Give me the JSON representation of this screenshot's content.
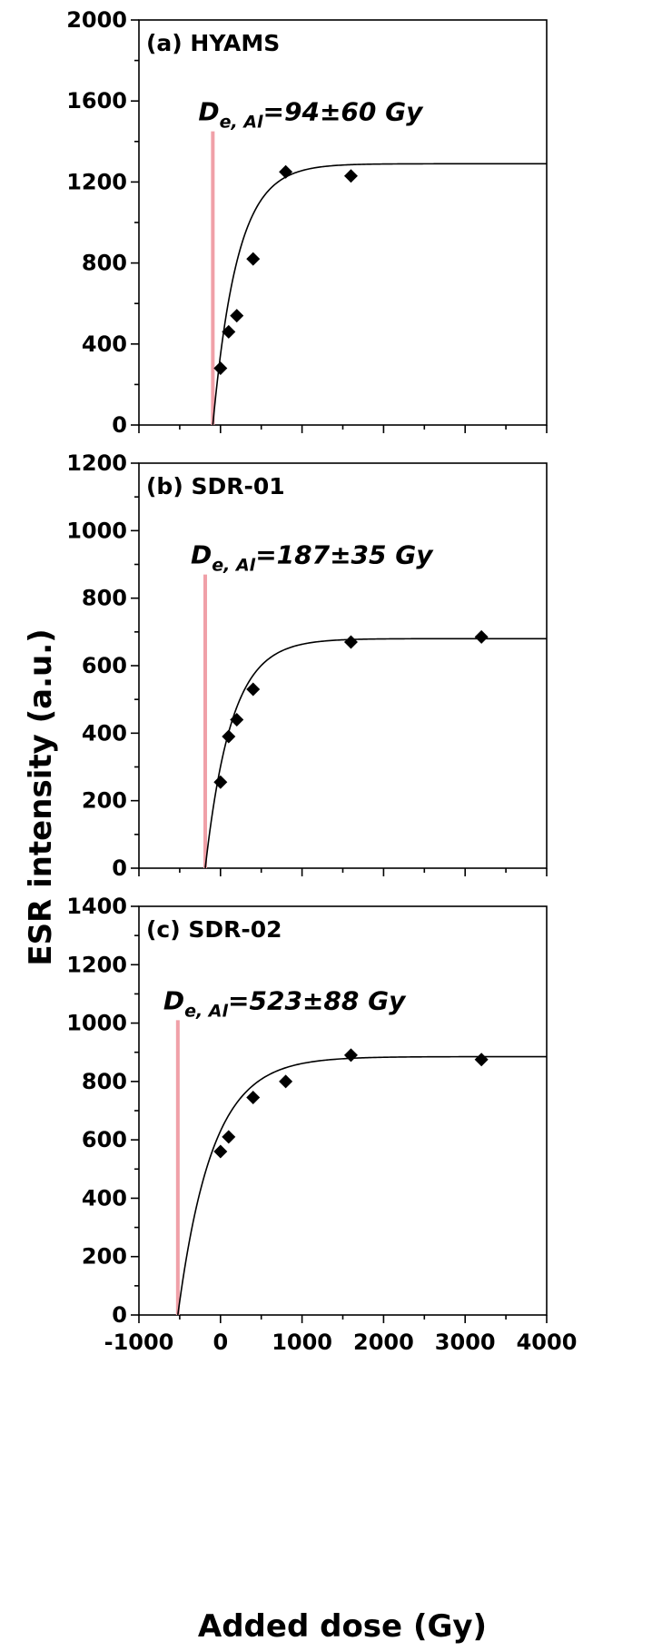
{
  "colors": {
    "axis": "#000000",
    "marker": "#000000",
    "fit_curve": "#000000",
    "de_line": "#f0a0a8"
  },
  "chart_data": [
    {
      "type": "scatter",
      "panel_label": "(a)  HYAMS",
      "annotation": {
        "prefix": "D",
        "subscript": "e, Al",
        "text": "=94±60 Gy"
      },
      "de_line": {
        "x": -94,
        "y_top": 1450
      },
      "xlim": [
        -1000,
        4000
      ],
      "ylim": [
        0,
        2000
      ],
      "yticks": [
        0,
        400,
        800,
        1200,
        1600,
        2000
      ],
      "tick_labels": [
        "0",
        "400",
        "800",
        "1200",
        "1600",
        "2000"
      ],
      "points": [
        {
          "x": 0,
          "y": 280
        },
        {
          "x": 100,
          "y": 460
        },
        {
          "x": 200,
          "y": 540
        },
        {
          "x": 400,
          "y": 820
        },
        {
          "x": 800,
          "y": 1250
        },
        {
          "x": 1600,
          "y": 1230
        }
      ],
      "fit": {
        "model": "saturating-exponential",
        "x0": -94,
        "ymax": 1290,
        "d0": 300
      }
    },
    {
      "type": "scatter",
      "panel_label": "(b)  SDR-01",
      "annotation": {
        "prefix": "D",
        "subscript": "e, Al",
        "text": "=187±35 Gy"
      },
      "de_line": {
        "x": -187,
        "y_top": 870
      },
      "xlim": [
        -1000,
        4000
      ],
      "ylim": [
        0,
        1200
      ],
      "yticks": [
        0,
        200,
        400,
        600,
        800,
        1000,
        1200
      ],
      "tick_labels": [
        "0",
        "200",
        "400",
        "600",
        "800",
        "1000",
        "1200"
      ],
      "points": [
        {
          "x": 0,
          "y": 255
        },
        {
          "x": 100,
          "y": 390
        },
        {
          "x": 200,
          "y": 440
        },
        {
          "x": 400,
          "y": 530
        },
        {
          "x": 1600,
          "y": 670
        },
        {
          "x": 3200,
          "y": 685
        }
      ],
      "fit": {
        "model": "saturating-exponential",
        "x0": -187,
        "ymax": 680,
        "d0": 320
      }
    },
    {
      "type": "scatter",
      "panel_label": "(c)  SDR-02",
      "annotation": {
        "prefix": "D",
        "subscript": "e, Al",
        "text": "=523±88 Gy"
      },
      "de_line": {
        "x": -523,
        "y_top": 1010
      },
      "xlim": [
        -1000,
        4000
      ],
      "ylim": [
        0,
        1400
      ],
      "yticks": [
        0,
        200,
        400,
        600,
        800,
        1000,
        1200,
        1400
      ],
      "tick_labels": [
        "0",
        "200",
        "400",
        "600",
        "800",
        "1000",
        "1200",
        "1400"
      ],
      "points": [
        {
          "x": 0,
          "y": 560
        },
        {
          "x": 100,
          "y": 610
        },
        {
          "x": 400,
          "y": 745
        },
        {
          "x": 800,
          "y": 800
        },
        {
          "x": 1600,
          "y": 890
        },
        {
          "x": 3200,
          "y": 875
        }
      ],
      "fit": {
        "model": "saturating-exponential",
        "x0": -523,
        "ymax": 885,
        "d0": 420
      }
    }
  ],
  "x_axis": {
    "ticks": [
      -1000,
      0,
      1000,
      2000,
      3000,
      4000
    ],
    "tick_labels": [
      "-1000",
      "0",
      "1000",
      "2000",
      "3000",
      "4000"
    ],
    "title": "Added dose (Gy)"
  },
  "y_axis": {
    "title": "ESR intensity (a.u.)"
  }
}
